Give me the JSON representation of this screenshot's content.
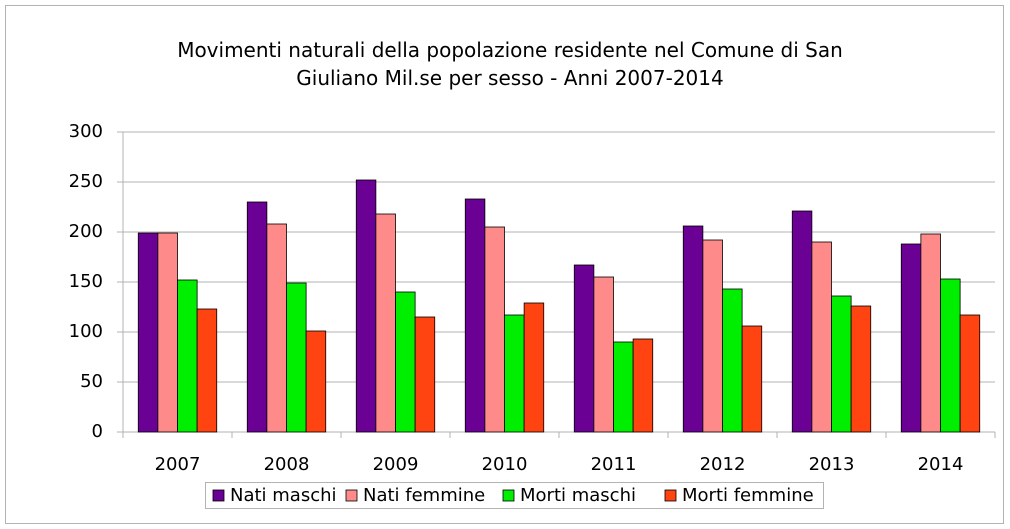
{
  "chart_data": {
    "type": "bar",
    "title": "Movimenti naturali della popolazione residente nel Comune di San Giuliano Mil.se per sesso - Anni 2007-2014",
    "categories": [
      "2007",
      "2008",
      "2009",
      "2010",
      "2011",
      "2012",
      "2013",
      "2014"
    ],
    "series": [
      {
        "name": "Nati maschi",
        "color": "#6a0094",
        "values": [
          199,
          230,
          252,
          233,
          167,
          206,
          221,
          188
        ]
      },
      {
        "name": "Nati femmine",
        "color": "#ff8a8a",
        "values": [
          199,
          208,
          218,
          205,
          155,
          192,
          190,
          198
        ]
      },
      {
        "name": "Morti maschi",
        "color": "#00ee00",
        "values": [
          152,
          149,
          140,
          117,
          90,
          143,
          136,
          153
        ]
      },
      {
        "name": "Morti femmine",
        "color": "#ff4411",
        "values": [
          123,
          101,
          115,
          129,
          93,
          106,
          126,
          117
        ]
      }
    ],
    "ylim": [
      0,
      300
    ],
    "yticks": [
      0,
      50,
      100,
      150,
      200,
      250,
      300
    ],
    "grid": true,
    "legend": "bottom"
  }
}
